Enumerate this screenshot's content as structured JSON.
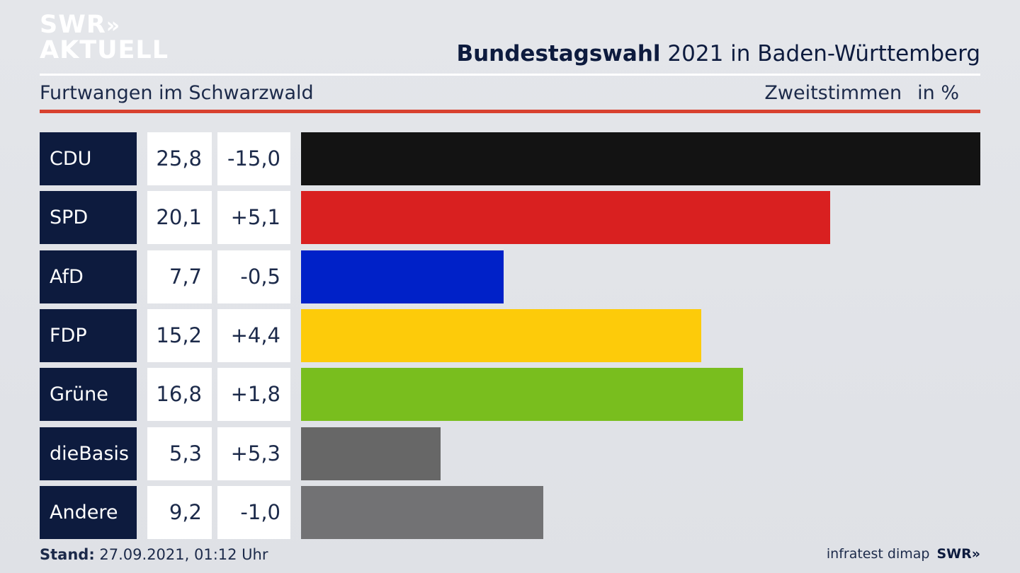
{
  "header": {
    "logo_line1": "SWR",
    "logo_arrows": "»",
    "logo_line2": "AKTUELL",
    "title_bold": "Bundestagswahl",
    "title_rest": " 2021 in Baden-Württemberg",
    "subtitle": "Furtwangen im Schwarzwald",
    "measure": "Zweitstimmen",
    "unit": "in %"
  },
  "footer": {
    "stand_label": "Stand:",
    "stand_value": " 27.09.2021, 01:12 Uhr",
    "source": "infratest dimap",
    "brand": "SWR",
    "brand_arrows": "»"
  },
  "chart_data": {
    "type": "bar",
    "orientation": "horizontal",
    "xlim": [
      0,
      25.8
    ],
    "categories": [
      "CDU",
      "SPD",
      "AfD",
      "FDP",
      "Grüne",
      "dieBasis",
      "Andere"
    ],
    "values": [
      25.8,
      20.1,
      7.7,
      15.2,
      16.8,
      5.3,
      9.2
    ],
    "value_labels": [
      "25,8",
      "20,1",
      "7,7",
      "15,2",
      "16,8",
      "5,3",
      "9,2"
    ],
    "diff_labels": [
      "-15,0",
      "+5,1",
      "-0,5",
      "+4,4",
      "+1,8",
      "+5,3",
      "-1,0"
    ],
    "colors": [
      "#131313",
      "#d92020",
      "#0021c8",
      "#fdcb0a",
      "#79be1e",
      "#676767",
      "#727274"
    ]
  }
}
